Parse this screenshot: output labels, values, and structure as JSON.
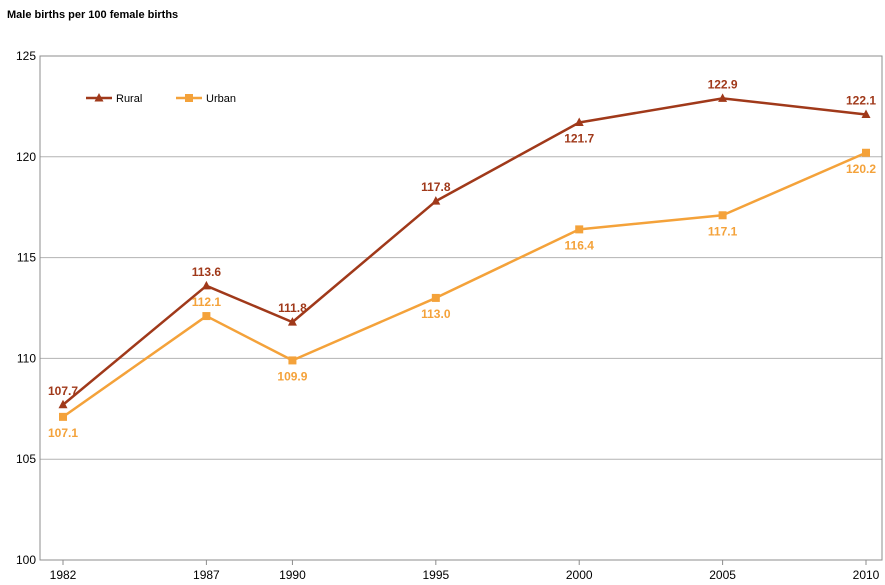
{
  "chart_data": {
    "type": "line",
    "title": "Male births per 100 female births",
    "x": [
      1982,
      1987,
      1990,
      1995,
      2000,
      2005,
      2010
    ],
    "xlabel": "",
    "ylabel": "",
    "ylim": [
      100,
      125
    ],
    "yticks": [
      100,
      105,
      110,
      115,
      120,
      125
    ],
    "grid": true,
    "legend": "top-left",
    "series": [
      {
        "name": "Rural",
        "color": "#a0391a",
        "marker": "triangle",
        "values": [
          107.7,
          113.6,
          111.8,
          117.8,
          121.7,
          122.9,
          122.1
        ],
        "labels": [
          "107.7",
          "113.6",
          "111.8",
          "117.8",
          "121.7",
          "122.9",
          "122.1"
        ]
      },
      {
        "name": "Urban",
        "color": "#f4a23a",
        "marker": "square",
        "values": [
          107.1,
          112.1,
          109.9,
          113.0,
          116.4,
          117.1,
          120.2
        ],
        "labels": [
          "107.1",
          "112.1",
          "109.9",
          "113.0",
          "116.4",
          "117.1",
          "120.2"
        ]
      }
    ]
  }
}
